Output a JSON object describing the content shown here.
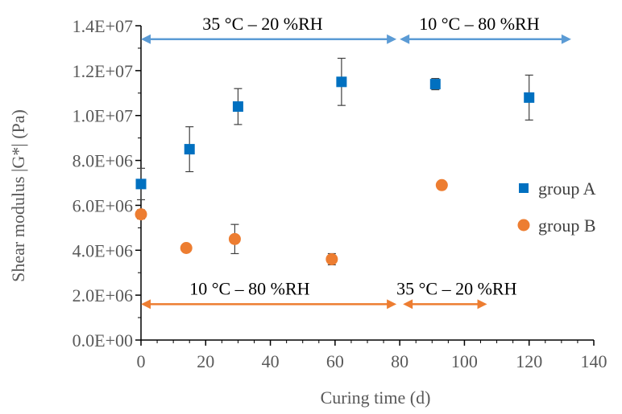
{
  "chart_data": {
    "type": "scatter",
    "title": "",
    "xlabel": "Curing time (d)",
    "ylabel": "Shear modulus |G*| (Pa)",
    "xlim": [
      0,
      140
    ],
    "ylim": [
      0,
      14000000
    ],
    "x_ticks": [
      0,
      20,
      40,
      60,
      80,
      100,
      120,
      140
    ],
    "y_ticks": [
      0,
      2000000,
      4000000,
      6000000,
      8000000,
      10000000,
      12000000,
      14000000
    ],
    "x_tick_labels": [
      "0",
      "20",
      "40",
      "60",
      "80",
      "100",
      "120",
      "140"
    ],
    "y_tick_labels": [
      "0.0E+00",
      "2.0E+06",
      "4.0E+06",
      "6.0E+06",
      "8.0E+06",
      "1.0E+07",
      "1.2E+07",
      "1.4E+07"
    ],
    "grid": false,
    "legend_position": "right",
    "series": [
      {
        "name": "group A",
        "marker": "square",
        "color": "#0070C0",
        "points": [
          {
            "x": 0,
            "y": 6950000,
            "err": 700000
          },
          {
            "x": 15,
            "y": 8500000,
            "err": 1000000
          },
          {
            "x": 30,
            "y": 10400000,
            "err": 800000
          },
          {
            "x": 62,
            "y": 11500000,
            "err": 1050000
          },
          {
            "x": 91,
            "y": 11400000,
            "err": 250000
          },
          {
            "x": 120,
            "y": 10800000,
            "err": 1000000
          }
        ]
      },
      {
        "name": "group B",
        "marker": "circle",
        "color": "#ED7D31",
        "points": [
          {
            "x": 0,
            "y": 5600000,
            "err": 200000
          },
          {
            "x": 14,
            "y": 4100000,
            "err": 0
          },
          {
            "x": 29,
            "y": 4500000,
            "err": 650000
          },
          {
            "x": 59,
            "y": 3600000,
            "err": 250000
          },
          {
            "x": 93,
            "y": 6900000,
            "err": 0
          }
        ]
      }
    ],
    "annotations": [
      {
        "text": "35 °C – 20 %RH",
        "x_start": 0,
        "x_end": 79,
        "y": 13400000,
        "color": "#5B9BD5",
        "label_y": 14000000,
        "label_x": 19
      },
      {
        "text": "10 °C – 80 %RH",
        "x_start": 80,
        "x_end": 133,
        "y": 13400000,
        "color": "#5B9BD5",
        "label_y": 14000000,
        "label_x": 86
      },
      {
        "text": "10 °C – 80 %RH",
        "x_start": 0,
        "x_end": 79,
        "y": 1600000,
        "color": "#ED7D31",
        "label_y": 2200000,
        "label_x": 15
      },
      {
        "text": "35 °C – 20 %RH",
        "x_start": 81,
        "x_end": 107,
        "y": 1600000,
        "color": "#ED7D31",
        "label_y": 2200000,
        "label_x": 79
      }
    ]
  }
}
